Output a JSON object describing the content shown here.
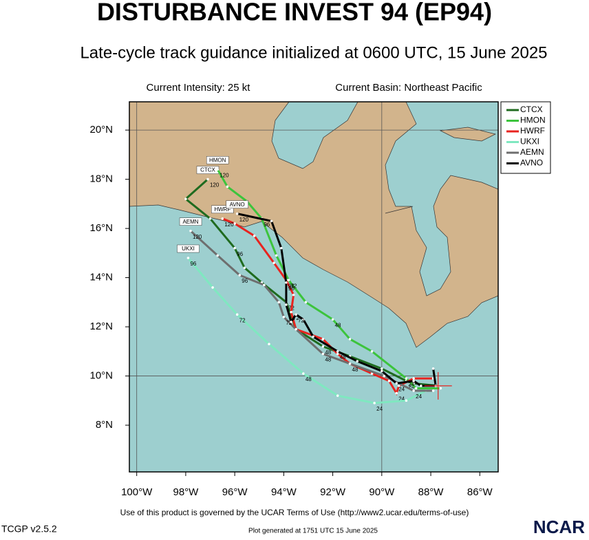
{
  "chart_data": {
    "type": "track",
    "title": "DISTURBANCE INVEST 94 (EP94)",
    "subtitle": "Late-cycle track guidance initialized at 0600 UTC, 15 June 2025",
    "annotations": [
      "Current Intensity: 25 kt",
      "Current Basin: Northeast Pacific"
    ],
    "xlim": [
      -100.3,
      -85.25
    ],
    "ylim": [
      6.1,
      21.15
    ],
    "xticks": [
      {
        "value": -100,
        "label": "100°W"
      },
      {
        "value": -98,
        "label": "98°W"
      },
      {
        "value": -96,
        "label": "96°W"
      },
      {
        "value": -94,
        "label": "94°W"
      },
      {
        "value": -92,
        "label": "92°W"
      },
      {
        "value": -90,
        "label": "90°W"
      },
      {
        "value": -88,
        "label": "88°W"
      },
      {
        "value": -86,
        "label": "86°W"
      }
    ],
    "yticks": [
      {
        "value": 8,
        "label": "8°N"
      },
      {
        "value": 10,
        "label": "10°N"
      },
      {
        "value": 12,
        "label": "12°N"
      },
      {
        "value": 14,
        "label": "14°N"
      },
      {
        "value": 16,
        "label": "16°N"
      },
      {
        "value": 18,
        "label": "18°N"
      },
      {
        "value": 20,
        "label": "20°N"
      }
    ],
    "grid": true,
    "legend": "upper right",
    "series": [
      {
        "name": "CTCX",
        "color": "#1f6b1f",
        "x": [
          -87.7,
          -88.7,
          -89.0,
          -90.0,
          -91.3,
          -92.4,
          -93.5,
          -93.9,
          -94.9,
          -95.6,
          -96.0,
          -97.0,
          -98.0,
          -97.1
        ],
        "values": [
          9.6,
          9.7,
          9.8,
          10.3,
          10.8,
          11.2,
          11.9,
          13.0,
          13.8,
          14.4,
          15.2,
          16.4,
          17.2,
          18.0
        ],
        "value_labels": [
          null,
          null,
          "24",
          null,
          null,
          "48",
          null,
          "72",
          null,
          null,
          "96",
          null,
          null,
          "120"
        ]
      },
      {
        "name": "HMON",
        "color": "#3cc43c",
        "x": [
          -87.6,
          -88.6,
          -89.0,
          -90.4,
          -91.3,
          -92.0,
          -93.1,
          -93.8,
          -94.3,
          -94.9,
          -95.5,
          -96.3,
          -96.7
        ],
        "values": [
          9.5,
          9.5,
          9.9,
          11.0,
          11.5,
          12.3,
          13.0,
          13.9,
          14.9,
          16.4,
          17.1,
          17.7,
          18.4
        ],
        "value_labels": [
          null,
          null,
          "24",
          null,
          null,
          "48",
          null,
          "72",
          null,
          "96",
          null,
          null,
          "120"
        ]
      },
      {
        "name": "HWRF",
        "color": "#e8231f",
        "x": [
          -87.9,
          -88.7,
          -89.3,
          -89.4,
          -89.7,
          -90.4,
          -91.3,
          -91.8,
          -92.4,
          -93.5,
          -93.7,
          -93.6,
          -93.9,
          -94.4,
          -95.2,
          -96.0,
          -96.5
        ],
        "values": [
          9.9,
          9.9,
          9.6,
          9.3,
          9.8,
          10.1,
          10.5,
          10.9,
          11.5,
          11.9,
          12.6,
          13.3,
          13.9,
          14.6,
          15.7,
          16.2,
          16.4
        ],
        "value_labels": [
          null,
          null,
          null,
          "24",
          null,
          null,
          "48",
          null,
          null,
          null,
          "72",
          null,
          "96",
          null,
          null,
          null,
          "120"
        ]
      },
      {
        "name": "UKXI",
        "color": "#7fe8c0",
        "x": [
          -88.2,
          -89.0,
          -90.3,
          -91.8,
          -93.2,
          -94.6,
          -95.9,
          -96.9,
          -97.9
        ],
        "values": [
          9.4,
          9.0,
          8.9,
          9.2,
          10.1,
          11.3,
          12.5,
          13.6,
          14.8
        ],
        "value_labels": [
          null,
          null,
          "24",
          null,
          "48",
          null,
          "72",
          null,
          "96"
        ]
      },
      {
        "name": "AEMN",
        "color": "#6e6e6e",
        "x": [
          -87.9,
          -88.7,
          -89.9,
          -91.3,
          -92.4,
          -93.5,
          -94.0,
          -94.2,
          -94.8,
          -95.8,
          -96.7,
          -97.8
        ],
        "values": [
          9.4,
          9.4,
          10.0,
          10.5,
          10.9,
          11.9,
          12.4,
          13.0,
          13.7,
          14.1,
          14.9,
          15.9
        ],
        "value_labels": [
          null,
          "24",
          null,
          null,
          "48",
          null,
          "72",
          null,
          null,
          "96",
          null,
          "120"
        ]
      },
      {
        "name": "AVNO",
        "color": "#000000",
        "x": [
          -87.9,
          -87.8,
          -88.4,
          -88.7,
          -89.4,
          -90.0,
          -91.0,
          -91.8,
          -92.8,
          -93.2,
          -93.5,
          -93.7,
          -93.9,
          -93.9,
          -94.1,
          -94.5,
          -95.9
        ],
        "values": [
          10.3,
          9.6,
          9.6,
          9.8,
          9.7,
          10.2,
          10.6,
          11.0,
          11.6,
          12.3,
          12.5,
          12.2,
          12.9,
          13.8,
          15.2,
          16.3,
          16.6
        ],
        "value_labels": [
          null,
          null,
          null,
          null,
          "24",
          null,
          null,
          "48",
          null,
          null,
          "72",
          null,
          null,
          "96",
          null,
          null,
          "120"
        ]
      }
    ]
  },
  "footer": {
    "terms": "Use of this product is governed by the UCAR Terms of Use (http://www2.ucar.edu/terms-of-use)",
    "version": "TCGP v2.5.2",
    "generated": "Plot generated at 1751 UTC  15 June 2025",
    "logo": "NCAR"
  }
}
